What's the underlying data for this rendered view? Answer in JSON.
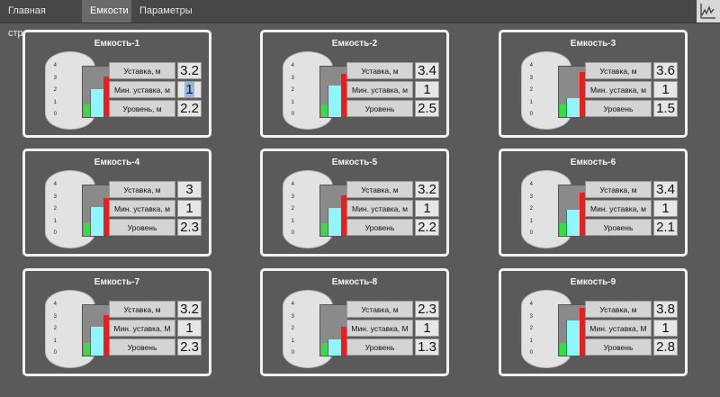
{
  "tabs": [
    {
      "label": "Главная страница"
    },
    {
      "label": "Емкости"
    },
    {
      "label": "Параметры"
    }
  ],
  "scale": [
    "4",
    "3",
    "2",
    "1",
    "0"
  ],
  "scale_max": 4,
  "row_labels": {
    "setpoint": "Уставка, м",
    "min_setpoint_a": "Мин. уставка, м",
    "min_setpoint_b": "Мин. уставка, М",
    "level": "Уровень, м",
    "level_short": "Уровень"
  },
  "colors": {
    "setpoint_bar": "#ee1c1c",
    "level_bar": "#8ff7fb",
    "min_bar": "#34e040",
    "panel_border": "#f2f2f2",
    "background": "#5a5a5a"
  },
  "tanks": [
    {
      "title": "Емкость-1",
      "setpoint": "3.2",
      "min_setpoint": "1",
      "level": "2.2",
      "setpoint_label": "Уставка, м",
      "min_label": "Мин. уставка, м",
      "level_label": "Уровень, м"
    },
    {
      "title": "Емкость-2",
      "setpoint": "3.4",
      "min_setpoint": "1",
      "level": "2.5",
      "setpoint_label": "Уставка, м",
      "min_label": "Мин. уставка, м",
      "level_label": "Уровень"
    },
    {
      "title": "Емкость-3",
      "setpoint": "3.6",
      "min_setpoint": "1",
      "level": "1.5",
      "setpoint_label": "Уставка, м",
      "min_label": "Мин. уставка, м",
      "level_label": "Уровень"
    },
    {
      "title": "Емкость-4",
      "setpoint": "3",
      "min_setpoint": "1",
      "level": "2.3",
      "setpoint_label": "Уставка, м",
      "min_label": "Мин. уставка, м",
      "level_label": "Уровень"
    },
    {
      "title": "Емкость-5",
      "setpoint": "3.2",
      "min_setpoint": "1",
      "level": "2.2",
      "setpoint_label": "Уставка, м",
      "min_label": "Мин. уставка, м",
      "level_label": "Уровень"
    },
    {
      "title": "Емкость-6",
      "setpoint": "3.4",
      "min_setpoint": "1",
      "level": "2.1",
      "setpoint_label": "Уставка, м",
      "min_label": "Мин. уставка, м",
      "level_label": "Уровень"
    },
    {
      "title": "Емкость-7",
      "setpoint": "3.2",
      "min_setpoint": "1",
      "level": "2.3",
      "setpoint_label": "Уставка, м",
      "min_label": "Мин. уставка, М",
      "level_label": "Уровень"
    },
    {
      "title": "Емкость-8",
      "setpoint": "2.3",
      "min_setpoint": "1",
      "level": "1.3",
      "setpoint_label": "Уставка, м",
      "min_label": "Мин. уставка, М",
      "level_label": "Уровень"
    },
    {
      "title": "Емкость-9",
      "setpoint": "3.8",
      "min_setpoint": "1",
      "level": "2.8",
      "setpoint_label": "Уставка, м",
      "min_label": "Мин. уставка, М",
      "level_label": "Уровень"
    }
  ]
}
